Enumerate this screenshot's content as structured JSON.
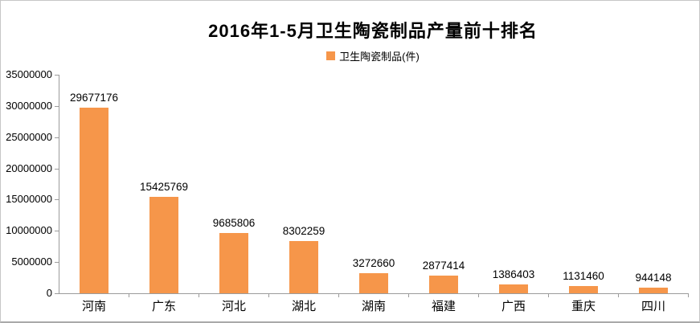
{
  "title": "2016年1-5月卫生陶瓷制品产量前十排名",
  "legend": {
    "label": "卫生陶瓷制品(件)",
    "swatch_color": "#F6964A"
  },
  "colors": {
    "bar": "#F6964A",
    "axis": "#9C9C9C",
    "text": "#000000",
    "frame_border": "#C6C6C6",
    "background": "#FFFFFF"
  },
  "chart_data": {
    "type": "bar",
    "title": "2016年1-5月卫生陶瓷制品产量前十排名",
    "series_name": "卫生陶瓷制品(件)",
    "categories": [
      "河南",
      "广东",
      "河北",
      "湖北",
      "湖南",
      "福建",
      "广西",
      "重庆",
      "四川"
    ],
    "values": [
      29677176,
      15425769,
      9685806,
      8302259,
      3272660,
      2877414,
      1386403,
      1131460,
      944148
    ],
    "value_labels": [
      "29677176",
      "15425769",
      "9685806",
      "8302259",
      "3272660",
      "2877414",
      "1386403",
      "1131460",
      "944148"
    ],
    "xlabel": "",
    "ylabel": "",
    "ylim": [
      0,
      35000000
    ],
    "ytick_step": 5000000,
    "yticks": [
      0,
      5000000,
      10000000,
      15000000,
      20000000,
      25000000,
      30000000,
      35000000
    ],
    "ytick_labels": [
      "0",
      "5000000",
      "10000000",
      "15000000",
      "20000000",
      "25000000",
      "30000000",
      "35000000"
    ],
    "grid": false,
    "legend_position": "top",
    "data_labels": true,
    "bar_color": "#F6964A"
  }
}
